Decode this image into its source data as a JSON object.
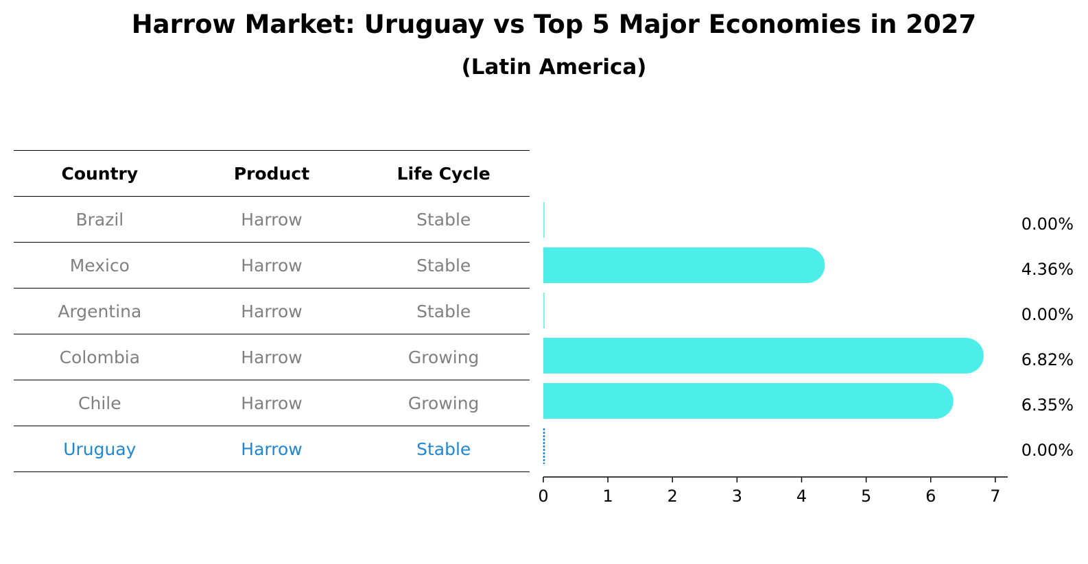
{
  "title": "Harrow Market: Uruguay vs Top 5 Major Economies in 2027",
  "subtitle": "(Latin America)",
  "table": {
    "headers": [
      "Country",
      "Product",
      "Life Cycle"
    ],
    "rows": [
      [
        "Brazil",
        "Harrow",
        "Stable"
      ],
      [
        "Mexico",
        "Harrow",
        "Stable"
      ],
      [
        "Argentina",
        "Harrow",
        "Stable"
      ],
      [
        "Colombia",
        "Harrow",
        "Growing"
      ],
      [
        "Chile",
        "Harrow",
        "Growing"
      ],
      [
        "Uruguay",
        "Harrow",
        "Stable"
      ]
    ],
    "highlight_row": 5
  },
  "colors": {
    "bar": "#4deeea",
    "highlight": "#1e87d6",
    "muted": "#808080"
  },
  "chart_data": {
    "type": "bar",
    "orientation": "horizontal",
    "categories": [
      "Brazil",
      "Mexico",
      "Argentina",
      "Colombia",
      "Chile",
      "Uruguay"
    ],
    "values": [
      0.0,
      4.36,
      0.0,
      6.82,
      6.35,
      0.0
    ],
    "value_labels": [
      "0.00%",
      "4.36%",
      "0.00%",
      "6.82%",
      "6.35%",
      "0.00%"
    ],
    "xlim": [
      0,
      7.15
    ],
    "xticks": [
      0,
      1,
      2,
      3,
      4,
      5,
      6,
      7
    ],
    "highlight": "Uruguay",
    "grid": false
  }
}
